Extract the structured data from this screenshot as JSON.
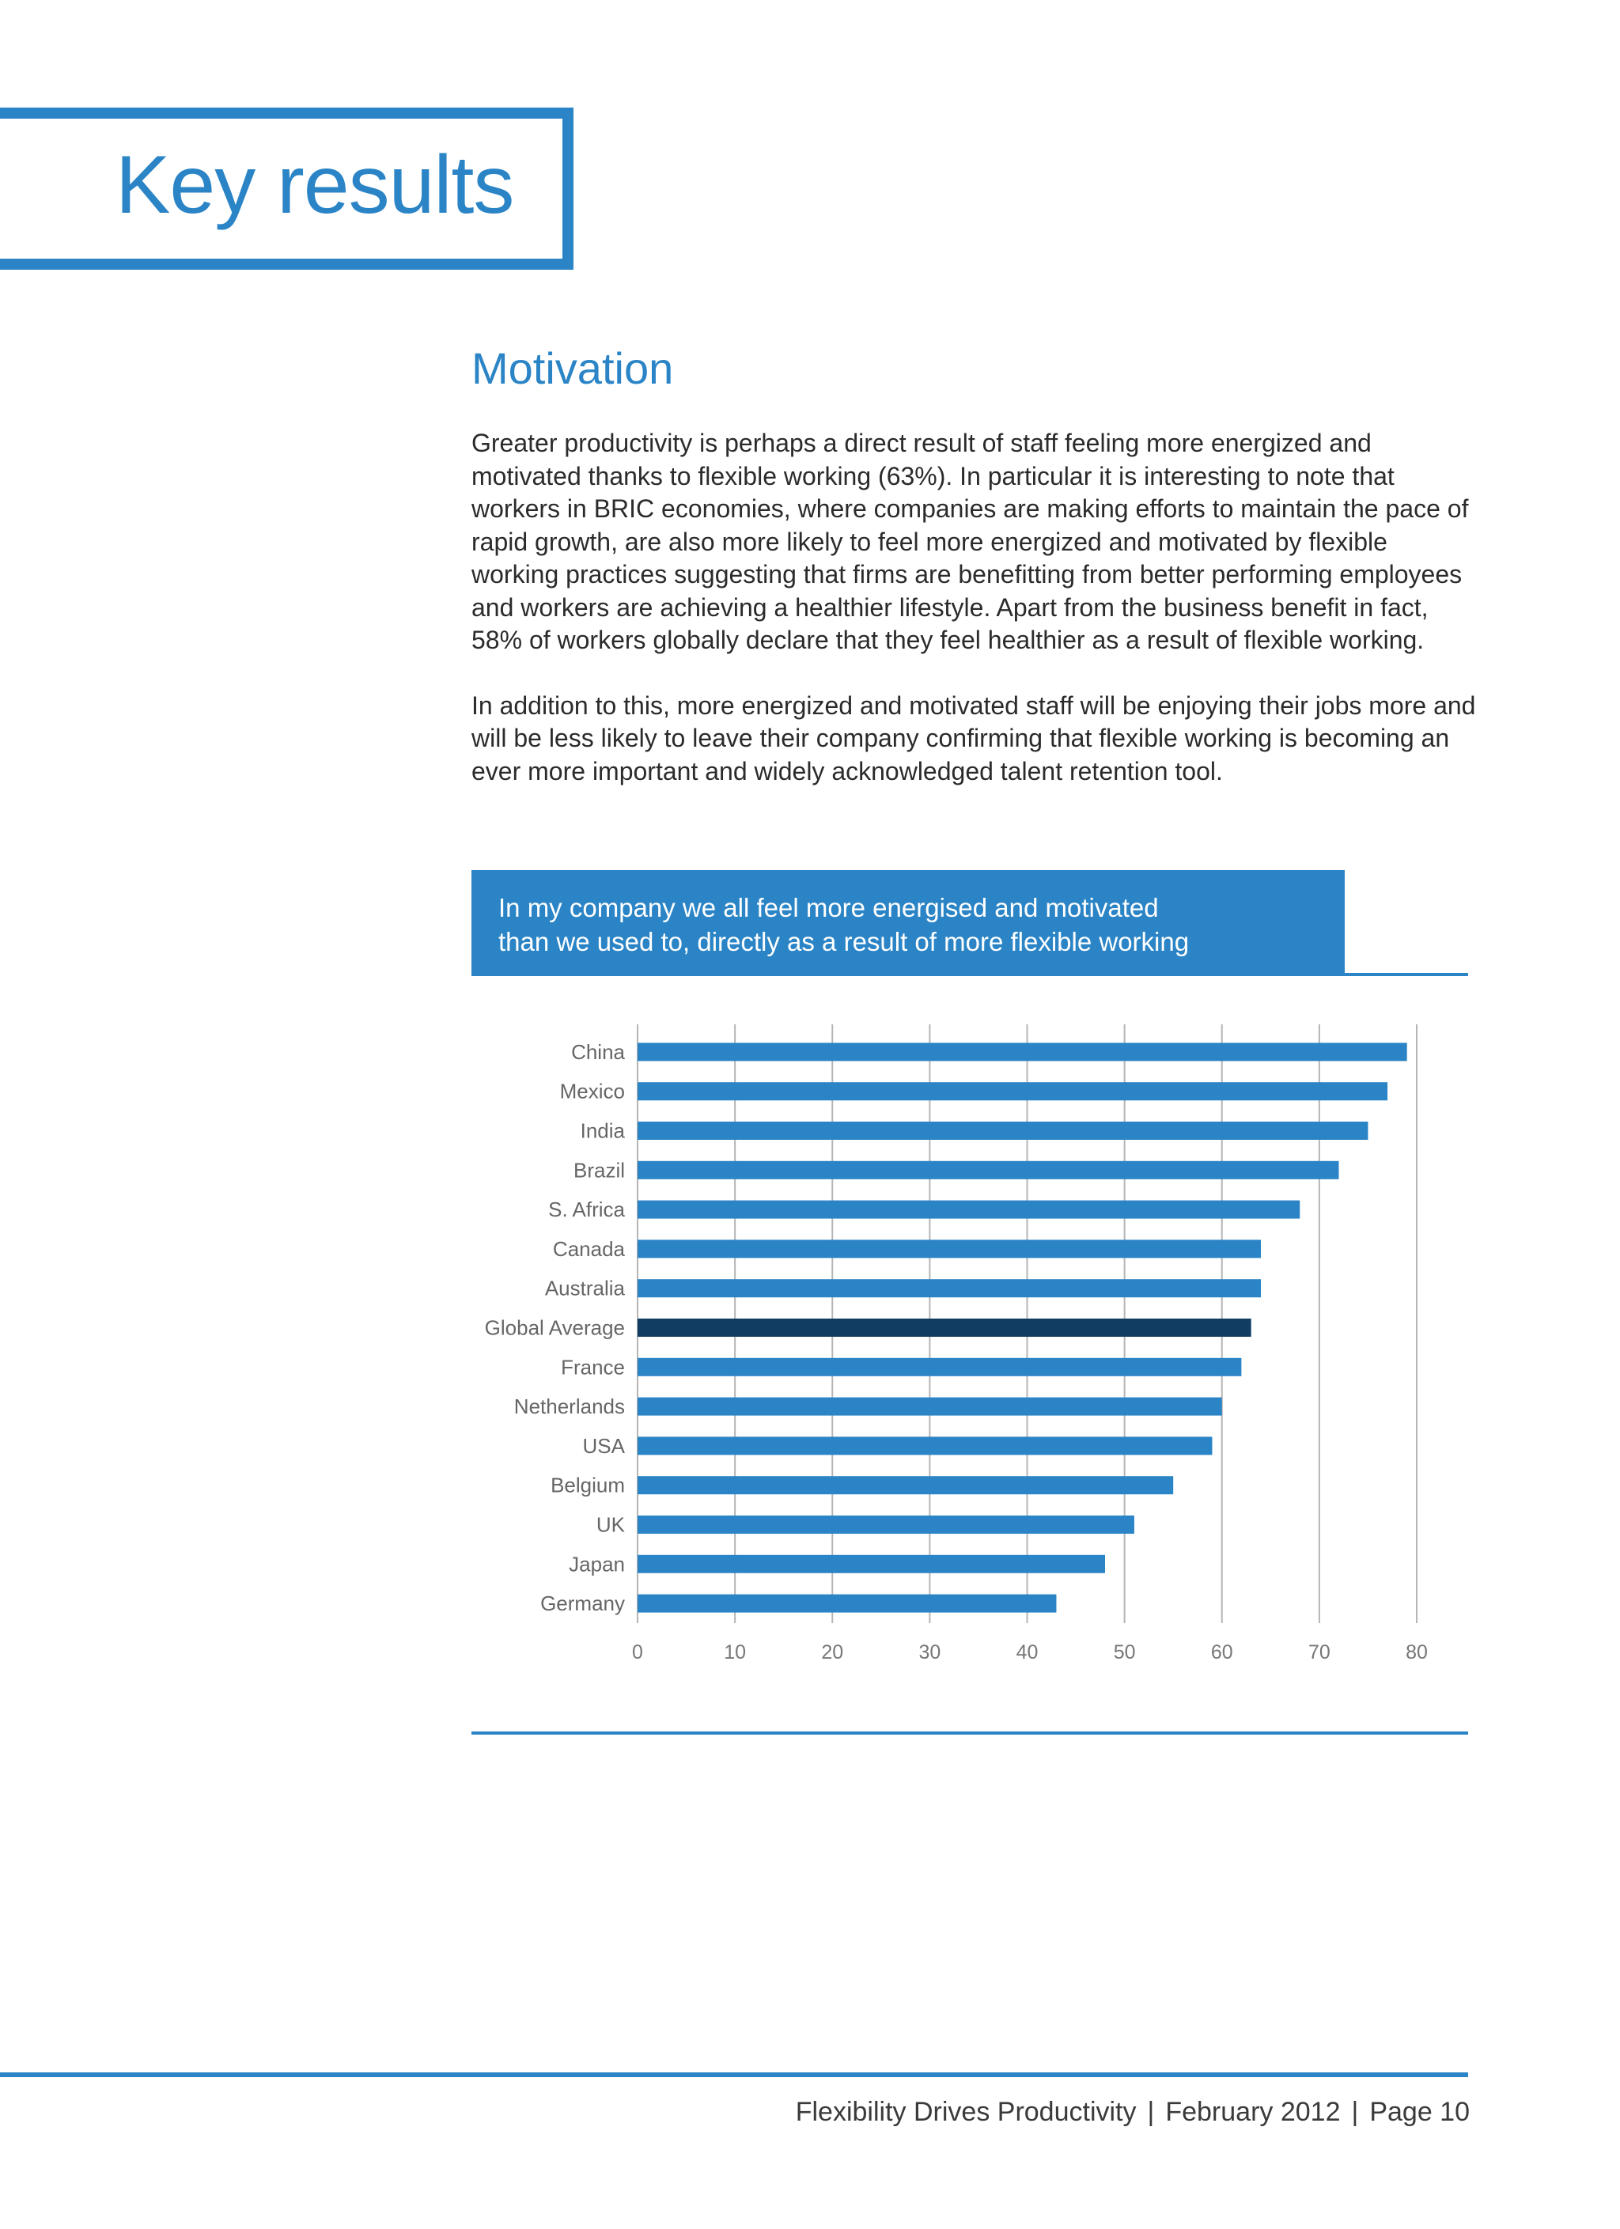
{
  "header": {
    "title": "Key results"
  },
  "section": {
    "title": "Motivation",
    "paragraphs": [
      "Greater productivity is perhaps a direct result of staff feeling more energized and motivated thanks to flexible working (63%). In particular it is interesting to note that workers in BRIC economies, where companies are making efforts to maintain the pace of rapid growth, are also more likely to feel more energized and motivated by flexible working practices suggesting that firms are benefitting from better performing employees and workers are achieving a healthier lifestyle. Apart from the business benefit in fact, 58% of workers globally declare that they feel healthier as a result of flexible working.",
      "In addition to this, more energized and motivated staff will be enjoying their jobs more and will be less likely to leave their company confirming that flexible working is becoming an ever more important and widely acknowledged talent retention tool."
    ]
  },
  "chart_heading": {
    "line1": "In my company we all feel more energised and motivated",
    "line2": "than we used to, directly as a result of more flexible working"
  },
  "chart_data": {
    "type": "bar",
    "orientation": "horizontal",
    "categories": [
      "China",
      "Mexico",
      "India",
      "Brazil",
      "S. Africa",
      "Canada",
      "Australia",
      "Global Average",
      "France",
      "Netherlands",
      "USA",
      "Belgium",
      "UK",
      "Japan",
      "Germany"
    ],
    "values": [
      79,
      77,
      75,
      72,
      68,
      64,
      64,
      63,
      62,
      60,
      59,
      55,
      51,
      48,
      43
    ],
    "highlight": "Global Average",
    "xlim": [
      0,
      80
    ],
    "xticks": [
      0,
      10,
      20,
      30,
      40,
      50,
      60,
      70,
      80
    ],
    "grid": true,
    "colors": {
      "bar": "#2a84c6",
      "highlight": "#123d63",
      "grid": "#b5b5b5"
    }
  },
  "footer": {
    "title": "Flexibility Drives Productivity",
    "date": "February 2012",
    "page": "Page 10",
    "separator": "|"
  }
}
